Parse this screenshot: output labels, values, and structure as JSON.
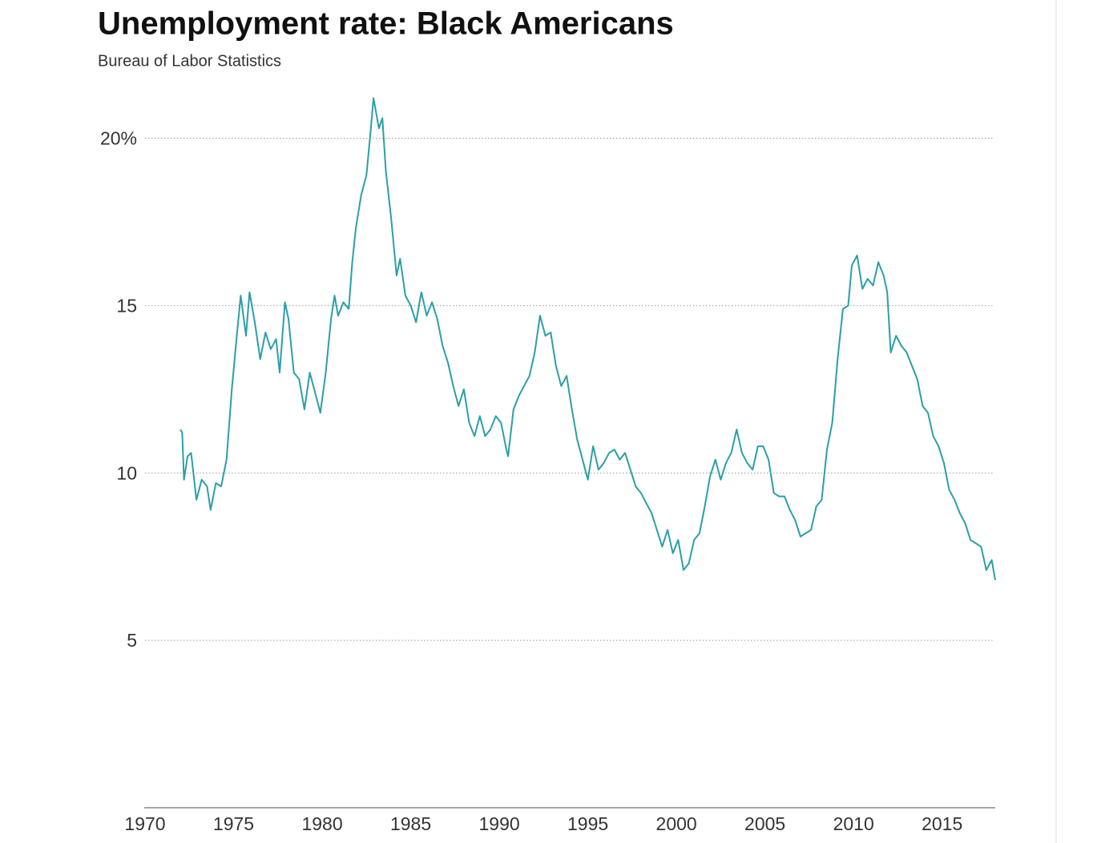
{
  "chart_data": {
    "type": "line",
    "title": "Unemployment rate: Black Americans",
    "subtitle": "Bureau of Labor Statistics",
    "color": "#2a9fa8",
    "grid": true,
    "xlim": [
      1970,
      2018
    ],
    "xticks": [
      1970,
      1975,
      1980,
      1985,
      1990,
      1995,
      2000,
      2005,
      2010,
      2015
    ],
    "ylim": [
      0,
      22
    ],
    "yticks": [
      5,
      10,
      15,
      {
        "value": 20,
        "label": "20%"
      }
    ],
    "x": [
      1972.0,
      1972.1,
      1972.2,
      1972.4,
      1972.6,
      1972.9,
      1973.2,
      1973.5,
      1973.7,
      1974.0,
      1974.3,
      1974.6,
      1974.9,
      1975.2,
      1975.4,
      1975.7,
      1975.9,
      1976.2,
      1976.5,
      1976.8,
      1977.1,
      1977.4,
      1977.6,
      1977.9,
      1978.1,
      1978.4,
      1978.7,
      1979.0,
      1979.3,
      1979.6,
      1979.9,
      1980.2,
      1980.5,
      1980.7,
      1980.9,
      1981.2,
      1981.5,
      1981.7,
      1981.9,
      1982.2,
      1982.5,
      1982.7,
      1982.9,
      1983.2,
      1983.4,
      1983.6,
      1983.9,
      1984.2,
      1984.4,
      1984.7,
      1985.0,
      1985.3,
      1985.6,
      1985.9,
      1986.2,
      1986.5,
      1986.8,
      1987.1,
      1987.4,
      1987.7,
      1988.0,
      1988.3,
      1988.6,
      1988.9,
      1989.2,
      1989.5,
      1989.8,
      1990.1,
      1990.4,
      1990.5,
      1990.8,
      1991.1,
      1991.4,
      1991.7,
      1992.0,
      1992.3,
      1992.6,
      1992.9,
      1993.2,
      1993.5,
      1993.8,
      1994.1,
      1994.4,
      1994.7,
      1995.0,
      1995.3,
      1995.6,
      1995.9,
      1996.2,
      1996.5,
      1996.8,
      1997.1,
      1997.4,
      1997.7,
      1998.0,
      1998.3,
      1998.6,
      1998.9,
      1999.2,
      1999.5,
      1999.8,
      2000.1,
      2000.4,
      2000.7,
      2001.0,
      2001.3,
      2001.6,
      2001.9,
      2002.2,
      2002.5,
      2002.8,
      2003.1,
      2003.4,
      2003.7,
      2004.0,
      2004.3,
      2004.6,
      2004.9,
      2005.2,
      2005.5,
      2005.8,
      2006.1,
      2006.4,
      2006.7,
      2007.0,
      2007.3,
      2007.6,
      2007.9,
      2008.2,
      2008.5,
      2008.8,
      2009.1,
      2009.4,
      2009.7,
      2009.9,
      2010.2,
      2010.5,
      2010.8,
      2011.1,
      2011.4,
      2011.7,
      2011.9,
      2012.1,
      2012.4,
      2012.7,
      2013.0,
      2013.3,
      2013.6,
      2013.9,
      2014.2,
      2014.5,
      2014.8,
      2015.1,
      2015.4,
      2015.7,
      2016.0,
      2016.3,
      2016.6,
      2016.9,
      2017.2,
      2017.5,
      2017.8,
      2018.0
    ],
    "values": [
      11.3,
      11.2,
      9.8,
      10.5,
      10.6,
      9.2,
      9.8,
      9.6,
      8.9,
      9.7,
      9.6,
      10.4,
      12.5,
      14.2,
      15.3,
      14.1,
      15.4,
      14.5,
      13.4,
      14.2,
      13.7,
      14.0,
      13.0,
      15.1,
      14.6,
      13.0,
      12.8,
      11.9,
      13.0,
      12.4,
      11.8,
      13.0,
      14.6,
      15.3,
      14.7,
      15.1,
      14.9,
      16.3,
      17.3,
      18.3,
      18.9,
      20.0,
      21.2,
      20.3,
      20.6,
      19.0,
      17.6,
      15.9,
      16.4,
      15.3,
      15.0,
      14.5,
      15.4,
      14.7,
      15.1,
      14.6,
      13.8,
      13.3,
      12.6,
      12.0,
      12.5,
      11.5,
      11.1,
      11.7,
      11.1,
      11.3,
      11.7,
      11.5,
      10.7,
      10.5,
      11.9,
      12.3,
      12.6,
      12.9,
      13.6,
      14.7,
      14.1,
      14.2,
      13.2,
      12.6,
      12.9,
      11.9,
      11.0,
      10.4,
      9.8,
      10.8,
      10.1,
      10.3,
      10.6,
      10.7,
      10.4,
      10.6,
      10.1,
      9.6,
      9.4,
      9.1,
      8.8,
      8.3,
      7.8,
      8.3,
      7.6,
      8.0,
      7.1,
      7.3,
      8.0,
      8.2,
      9.0,
      9.9,
      10.4,
      9.8,
      10.3,
      10.6,
      11.3,
      10.6,
      10.3,
      10.1,
      10.8,
      10.8,
      10.4,
      9.4,
      9.3,
      9.3,
      8.9,
      8.6,
      8.1,
      8.2,
      8.3,
      9.0,
      9.2,
      10.7,
      11.5,
      13.4,
      14.9,
      15.0,
      16.2,
      16.5,
      15.5,
      15.8,
      15.6,
      16.3,
      15.9,
      15.4,
      13.6,
      14.1,
      13.8,
      13.6,
      13.2,
      12.8,
      12.0,
      11.8,
      11.1,
      10.8,
      10.3,
      9.5,
      9.2,
      8.8,
      8.5,
      8.0,
      7.9,
      7.8,
      7.1,
      7.4,
      6.8
    ]
  }
}
